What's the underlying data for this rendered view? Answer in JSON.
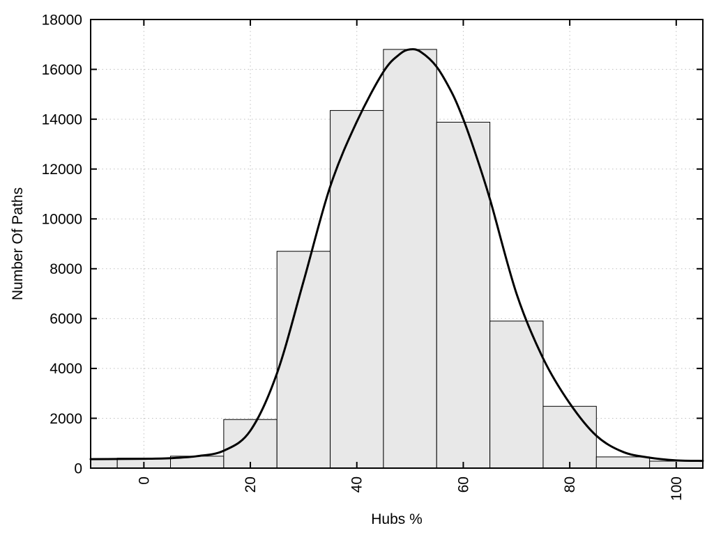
{
  "chart_data": {
    "type": "bar",
    "subtype": "histogram-with-density-curve",
    "title": "",
    "xlabel": "Hubs %",
    "ylabel": "Number Of Paths",
    "xlim": [
      -10,
      105
    ],
    "ylim": [
      0,
      18000
    ],
    "xticks": [
      0,
      20,
      40,
      60,
      80,
      100
    ],
    "yticks": [
      0,
      2000,
      4000,
      6000,
      8000,
      10000,
      12000,
      14000,
      16000,
      18000
    ],
    "grid": "dotted",
    "legend": "none",
    "bars": {
      "bin_width": 10,
      "centers": [
        -10,
        0,
        10,
        20,
        30,
        40,
        50,
        60,
        70,
        80,
        90,
        100
      ],
      "values": [
        380,
        400,
        480,
        1950,
        8700,
        14350,
        16800,
        13880,
        5900,
        2480,
        450,
        280
      ]
    },
    "curve": {
      "name": "smoothed-fit-curve",
      "x": [
        -10,
        -5,
        0,
        5,
        10,
        15,
        20,
        25,
        30,
        35,
        40,
        45,
        48,
        50,
        52,
        55,
        58,
        60,
        62,
        65,
        70,
        75,
        80,
        85,
        90,
        95,
        100,
        105
      ],
      "y": [
        360,
        365,
        375,
        400,
        480,
        700,
        1500,
        3800,
        7500,
        11300,
        13900,
        15900,
        16600,
        16800,
        16700,
        16100,
        15000,
        14000,
        12800,
        10800,
        7000,
        4400,
        2600,
        1300,
        650,
        420,
        310,
        290
      ]
    },
    "colors": {
      "background": "#ffffff",
      "bar_fill": "#e8e8e8",
      "bar_stroke": "#000000",
      "curve": "#000000",
      "grid": "#c0c0c0",
      "axis": "#000000"
    }
  }
}
